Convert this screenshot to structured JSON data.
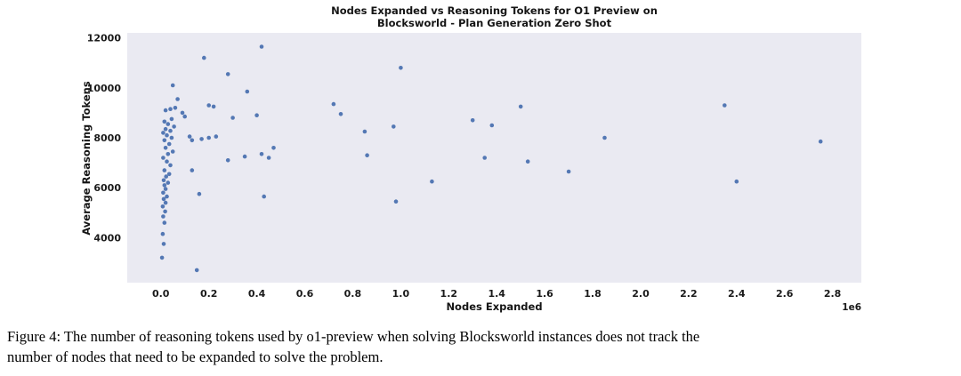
{
  "figure": {
    "caption_line1": "Figure 4: The number of reasoning tokens used by o1-preview when solving Blocksworld instances does not track the",
    "caption_line2": "number of nodes that need to be expanded to solve the problem."
  },
  "chart_data": {
    "type": "scatter",
    "title_line1": "Nodes Expanded vs Reasoning Tokens for O1 Preview on",
    "title_line2": "Blocksworld - Plan Generation Zero Shot",
    "xlabel": "Nodes Expanded",
    "ylabel": "Average Reasoning Tokens",
    "x_offset_label": "1e6",
    "xlim": [
      -0.14,
      2.92
    ],
    "ylim": [
      2200,
      12200
    ],
    "xtick_values": [
      0.0,
      0.2,
      0.4,
      0.6,
      0.8,
      1.0,
      1.2,
      1.4,
      1.6,
      1.8,
      2.0,
      2.2,
      2.4,
      2.6,
      2.8
    ],
    "xtick_labels": [
      "0.0",
      "0.2",
      "0.4",
      "0.6",
      "0.8",
      "1.0",
      "1.2",
      "1.4",
      "1.6",
      "1.8",
      "2.0",
      "2.2",
      "2.4",
      "2.6",
      "2.8"
    ],
    "ytick_values": [
      4000,
      6000,
      8000,
      10000,
      12000
    ],
    "ytick_labels": [
      "4000",
      "6000",
      "8000",
      "10000",
      "12000"
    ],
    "grid": false,
    "legend_position": "none",
    "plot_bg": "#eaeaf2",
    "point_color": "#4c72b0",
    "points": [
      [
        0.005,
        3200
      ],
      [
        0.012,
        3750
      ],
      [
        0.008,
        4150
      ],
      [
        0.015,
        4600
      ],
      [
        0.01,
        4850
      ],
      [
        0.018,
        5050
      ],
      [
        0.008,
        5250
      ],
      [
        0.02,
        5400
      ],
      [
        0.012,
        5550
      ],
      [
        0.025,
        5650
      ],
      [
        0.01,
        5800
      ],
      [
        0.02,
        5950
      ],
      [
        0.015,
        6100
      ],
      [
        0.03,
        6200
      ],
      [
        0.012,
        6300
      ],
      [
        0.022,
        6450
      ],
      [
        0.035,
        6550
      ],
      [
        0.015,
        6700
      ],
      [
        0.04,
        6900
      ],
      [
        0.025,
        7050
      ],
      [
        0.01,
        7200
      ],
      [
        0.03,
        7350
      ],
      [
        0.05,
        7450
      ],
      [
        0.02,
        7600
      ],
      [
        0.035,
        7750
      ],
      [
        0.015,
        7900
      ],
      [
        0.045,
        8000
      ],
      [
        0.025,
        8100
      ],
      [
        0.01,
        8200
      ],
      [
        0.04,
        8280
      ],
      [
        0.02,
        8350
      ],
      [
        0.055,
        8450
      ],
      [
        0.03,
        8550
      ],
      [
        0.015,
        8650
      ],
      [
        0.045,
        8750
      ],
      [
        0.02,
        9100
      ],
      [
        0.04,
        9150
      ],
      [
        0.06,
        9200
      ],
      [
        0.05,
        10100
      ],
      [
        0.07,
        9550
      ],
      [
        0.09,
        9000
      ],
      [
        0.1,
        8850
      ],
      [
        0.12,
        8050
      ],
      [
        0.13,
        7900
      ],
      [
        0.13,
        6700
      ],
      [
        0.15,
        2700
      ],
      [
        0.16,
        5750
      ],
      [
        0.17,
        7950
      ],
      [
        0.18,
        11200
      ],
      [
        0.2,
        9300
      ],
      [
        0.22,
        9250
      ],
      [
        0.2,
        8000
      ],
      [
        0.23,
        8050
      ],
      [
        0.28,
        10550
      ],
      [
        0.3,
        8800
      ],
      [
        0.28,
        7100
      ],
      [
        0.35,
        7250
      ],
      [
        0.36,
        9850
      ],
      [
        0.4,
        8900
      ],
      [
        0.42,
        11650
      ],
      [
        0.42,
        7350
      ],
      [
        0.45,
        7200
      ],
      [
        0.43,
        5650
      ],
      [
        0.47,
        7600
      ],
      [
        0.72,
        9350
      ],
      [
        0.75,
        8950
      ],
      [
        0.85,
        8250
      ],
      [
        0.86,
        7300
      ],
      [
        0.97,
        8450
      ],
      [
        0.98,
        5450
      ],
      [
        1.0,
        10800
      ],
      [
        1.13,
        6250
      ],
      [
        1.3,
        8700
      ],
      [
        1.35,
        7200
      ],
      [
        1.38,
        8500
      ],
      [
        1.5,
        9250
      ],
      [
        1.53,
        7050
      ],
      [
        1.7,
        6650
      ],
      [
        1.85,
        8000
      ],
      [
        2.35,
        9300
      ],
      [
        2.4,
        6250
      ],
      [
        2.75,
        7850
      ]
    ]
  }
}
